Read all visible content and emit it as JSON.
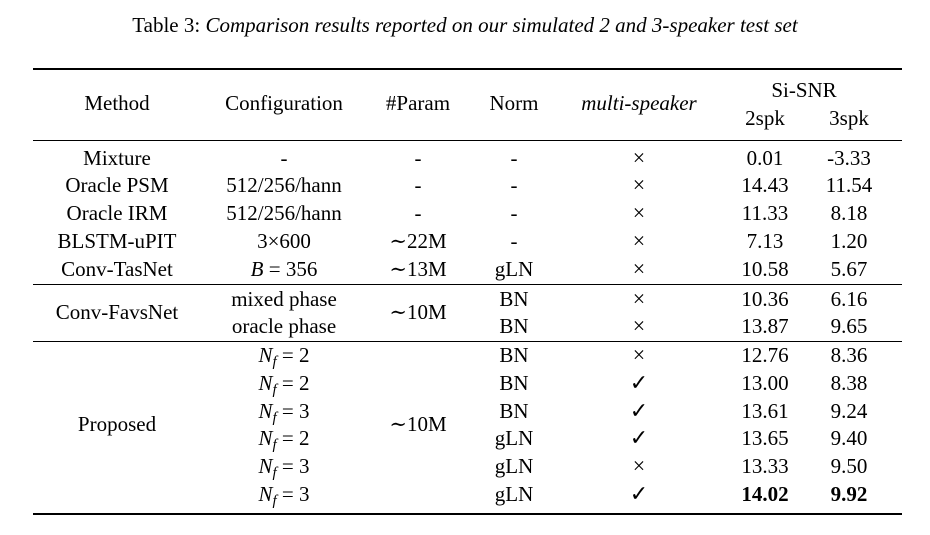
{
  "caption": {
    "label": "Table 3:",
    "text": "Comparison results reported on our simulated 2 and 3-speaker test set"
  },
  "headers": {
    "method": "Method",
    "configuration": "Configuration",
    "param": "#Param",
    "norm": "Norm",
    "multi_speaker": "multi-speaker",
    "sisnr": "Si-SNR",
    "spk2": "2spk",
    "spk3": "3spk"
  },
  "symbols": {
    "cross": "×",
    "check": "✓"
  },
  "group1": {
    "rows": [
      {
        "method": "Mixture",
        "config": "-",
        "param": "-",
        "norm": "-",
        "multi": "cross",
        "spk2": "0.01",
        "spk3": "-3.33"
      },
      {
        "method": "Oracle PSM",
        "config": "512/256/hann",
        "param": "-",
        "norm": "-",
        "multi": "cross",
        "spk2": "14.43",
        "spk3": "11.54"
      },
      {
        "method": "Oracle IRM",
        "config": "512/256/hann",
        "param": "-",
        "norm": "-",
        "multi": "cross",
        "spk2": "11.33",
        "spk3": "8.18"
      },
      {
        "method": "BLSTM-uPIT",
        "config": "3×600",
        "param": "∼22M",
        "norm": "-",
        "multi": "cross",
        "spk2": "7.13",
        "spk3": "1.20"
      },
      {
        "method": "Conv-TasNet",
        "config_var": "B",
        "config_val": "= 356",
        "param": "∼13M",
        "norm": "gLN",
        "multi": "cross",
        "spk2": "10.58",
        "spk3": "5.67"
      }
    ]
  },
  "group2": {
    "method": "Conv-FavsNet",
    "param": "∼10M",
    "rows": [
      {
        "config": "mixed phase",
        "norm": "BN",
        "multi": "cross",
        "spk2": "10.36",
        "spk3": "6.16"
      },
      {
        "config": "oracle phase",
        "norm": "BN",
        "multi": "cross",
        "spk2": "13.87",
        "spk3": "9.65"
      }
    ]
  },
  "group3": {
    "method": "Proposed",
    "param": "∼10M",
    "config_var": "N",
    "config_sub": "f",
    "rows": [
      {
        "config_val": "= 2",
        "norm": "BN",
        "multi": "cross",
        "spk2": "12.76",
        "spk3": "8.36"
      },
      {
        "config_val": "= 2",
        "norm": "BN",
        "multi": "check",
        "spk2": "13.00",
        "spk3": "8.38"
      },
      {
        "config_val": "= 3",
        "norm": "BN",
        "multi": "check",
        "spk2": "13.61",
        "spk3": "9.24"
      },
      {
        "config_val": "= 2",
        "norm": "gLN",
        "multi": "check",
        "spk2": "13.65",
        "spk3": "9.40"
      },
      {
        "config_val": "= 3",
        "norm": "gLN",
        "multi": "cross",
        "spk2": "13.33",
        "spk3": "9.50"
      },
      {
        "config_val": "= 3",
        "norm": "gLN",
        "multi": "check",
        "spk2": "14.02",
        "spk3": "9.92",
        "best": true
      }
    ]
  }
}
